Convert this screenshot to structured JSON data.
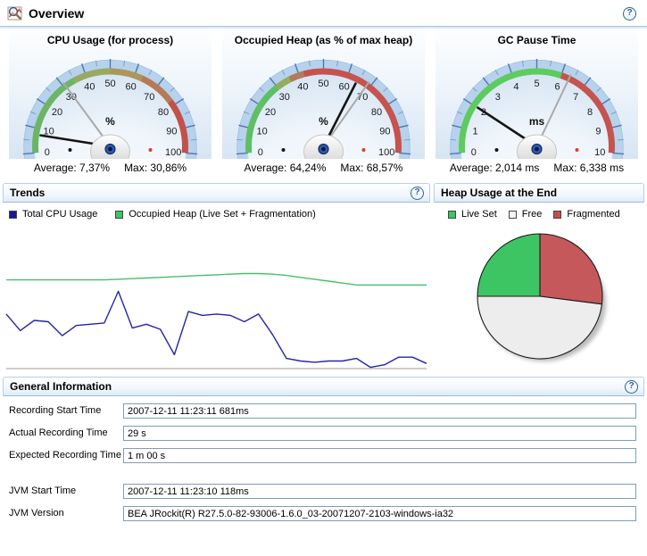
{
  "header": {
    "title": "Overview"
  },
  "help_icon": "?",
  "gauges": [
    {
      "title": "CPU Usage (for process)",
      "unit": "%",
      "min": 0,
      "max": 100,
      "label_step": 10,
      "minor_step": 5,
      "segments": [
        {
          "from": 0,
          "to": 35,
          "color": "#6cb566"
        },
        {
          "from": 35,
          "to": 50,
          "color": "#99aa60"
        },
        {
          "from": 50,
          "to": 63,
          "color": "#ab975d"
        },
        {
          "from": 63,
          "to": 78,
          "color": "#b87a55"
        },
        {
          "from": 78,
          "to": 100,
          "color": "#c25149"
        }
      ],
      "needle_value": 7.37,
      "marker_value": 30.86,
      "average_label": "Average: 7,37%",
      "max_label": "Max: 30,86%"
    },
    {
      "title": "Occupied Heap (as % of max heap)",
      "unit": "%",
      "min": 0,
      "max": 100,
      "label_step": 10,
      "minor_step": 5,
      "segments": [
        {
          "from": 0,
          "to": 30,
          "color": "#5fbf63"
        },
        {
          "from": 30,
          "to": 36,
          "color": "#93ad5e"
        },
        {
          "from": 36,
          "to": 42,
          "color": "#b5795a"
        },
        {
          "from": 42,
          "to": 100,
          "color": "#c6534e"
        }
      ],
      "needle_value": 64.24,
      "marker_value": 68.57,
      "average_label": "Average: 64,24%",
      "max_label": "Max: 68,57%"
    },
    {
      "title": "GC Pause Time",
      "unit": "ms",
      "min": 0,
      "max": 10,
      "label_step": 1,
      "minor_step": 0.5,
      "segments": [
        {
          "from": 0,
          "to": 6,
          "color": "#5ecb5e"
        },
        {
          "from": 6,
          "to": 10,
          "color": "#c6534e"
        }
      ],
      "needle_value": 2.014,
      "marker_value": 6.338,
      "average_label": "Average: 2,014 ms",
      "max_label": "Max: 6,338 ms"
    }
  ],
  "trends": {
    "title": "Trends",
    "legend": [
      {
        "label": "Total CPU Usage",
        "color": "#181890"
      },
      {
        "label": "Occupied Heap (Live Set + Fragmentation)",
        "color": "#3dc564"
      }
    ]
  },
  "heap": {
    "title": "Heap Usage at the End",
    "legend": [
      {
        "label": "Live Set",
        "color": "#3dc564"
      },
      {
        "label": "Free",
        "color": "#f4f4f4"
      },
      {
        "label": "Fragmented",
        "color": "#c4504a"
      }
    ]
  },
  "chart_data": [
    {
      "type": "line",
      "title": "Trends",
      "grid": false,
      "legend_position": "top",
      "xlabel": "",
      "ylabel": "",
      "ylim": [
        0,
        100
      ],
      "series": [
        {
          "name": "Total CPU Usage",
          "unit": "%",
          "color": "#2424aa",
          "values": [
            43,
            30,
            38,
            37,
            26,
            34,
            35,
            36,
            61,
            32,
            35,
            31,
            11,
            45,
            42,
            43,
            42,
            37,
            43,
            27,
            8,
            6,
            5,
            6,
            6,
            8,
            1,
            3,
            9,
            9,
            4
          ]
        },
        {
          "name": "Occupied Heap (Live Set + Fragmentation)",
          "unit": "%",
          "color": "#45c06b",
          "values": [
            70,
            70,
            70,
            70,
            70,
            70,
            70,
            70,
            70.5,
            71,
            71.5,
            72,
            72.5,
            73,
            73.5,
            74,
            74.5,
            75,
            75,
            74.5,
            73.5,
            72,
            70.5,
            69,
            67.5,
            66,
            66,
            66,
            66,
            66,
            66
          ]
        }
      ]
    },
    {
      "type": "pie",
      "title": "Heap Usage at the End",
      "start_angle_deg": -90,
      "direction": "clockwise",
      "slices": [
        {
          "label": "Fragmented",
          "value": 27,
          "color": "#c4585a"
        },
        {
          "label": "Free",
          "value": 48,
          "color": "#ededed"
        },
        {
          "label": "Live Set",
          "value": 25,
          "color": "#3dc564"
        }
      ]
    }
  ],
  "general": {
    "title": "General Information",
    "groups": [
      {
        "rows": [
          {
            "label": "Recording Start Time",
            "value": "2007-12-11 11:23:11 681ms"
          },
          {
            "label": "Actual Recording Time",
            "value": "29 s"
          },
          {
            "label": "Expected Recording Time",
            "value": "1 m 00 s"
          }
        ]
      },
      {
        "rows": [
          {
            "label": "JVM Start Time",
            "value": "2007-12-11 11:23:10 118ms"
          },
          {
            "label": "JVM Version",
            "value": "BEA JRockit(R) R27.5.0-82-93006-1.6.0_03-20071207-2103-windows-ia32"
          }
        ]
      }
    ]
  }
}
